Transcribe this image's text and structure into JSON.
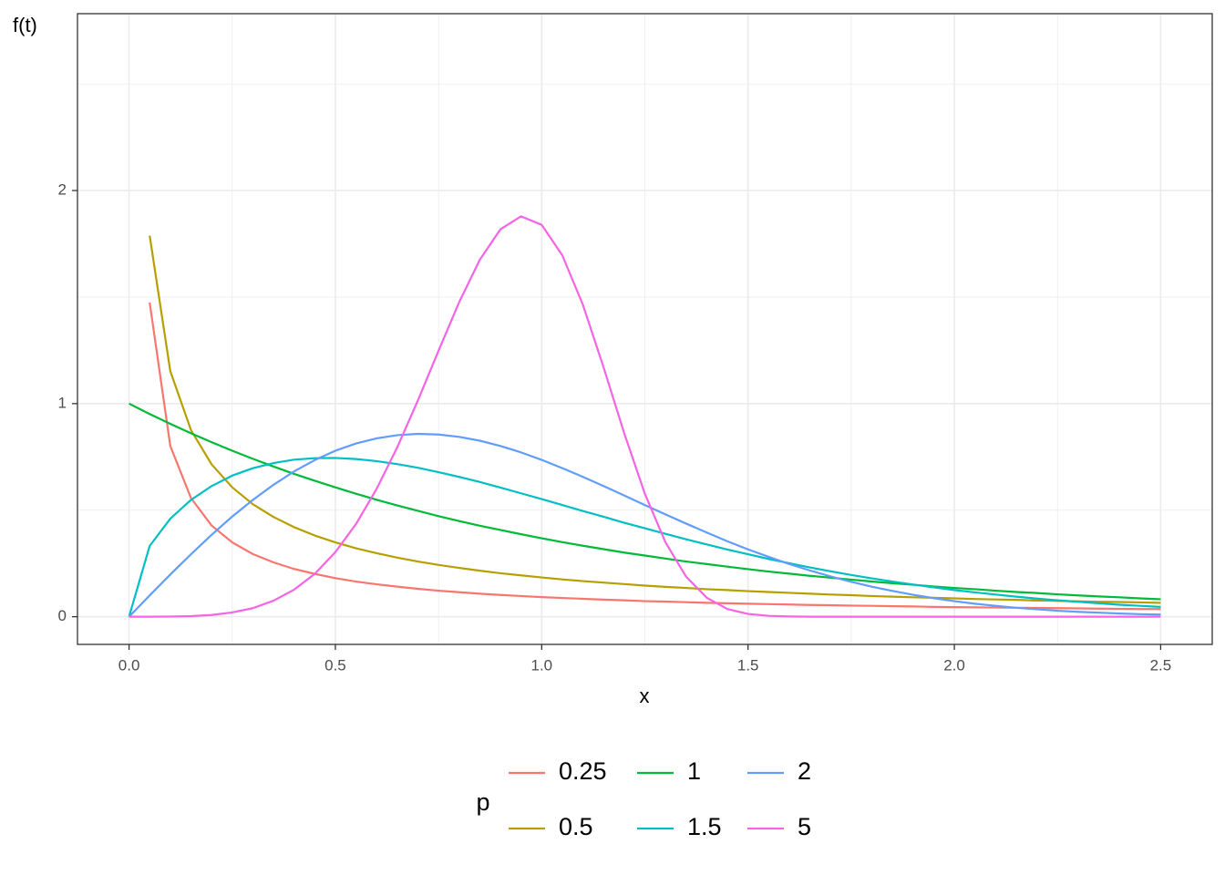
{
  "chart_data": {
    "type": "line",
    "x_label": "x",
    "y_label": "f(t)",
    "legend_title": "p",
    "x": [
      0,
      0.05,
      0.1,
      0.15,
      0.2,
      0.25,
      0.3,
      0.35,
      0.4,
      0.45,
      0.5,
      0.55,
      0.6,
      0.65,
      0.7,
      0.75,
      0.8,
      0.85,
      0.9,
      0.95,
      1,
      1.05,
      1.1,
      1.15,
      1.2,
      1.25,
      1.3,
      1.35,
      1.4,
      1.45,
      1.5,
      1.55,
      1.6,
      1.65,
      1.7,
      1.75,
      1.8,
      1.85,
      1.9,
      1.95,
      2,
      2.05,
      2.1,
      2.15,
      2.2,
      2.25,
      2.3,
      2.35,
      2.4,
      2.45,
      2.5
    ],
    "series": [
      {
        "name": "0.25",
        "color": "#F8766D",
        "values": [
          null,
          1.474,
          0.801,
          0.557,
          0.428,
          0.349,
          0.294,
          0.255,
          0.224,
          0.201,
          0.181,
          0.165,
          0.152,
          0.141,
          0.131,
          0.122,
          0.115,
          0.108,
          0.102,
          0.097,
          0.092,
          0.088,
          0.084,
          0.08,
          0.077,
          0.073,
          0.071,
          0.068,
          0.065,
          0.063,
          0.061,
          0.059,
          0.057,
          0.055,
          0.054,
          0.052,
          0.051,
          0.049,
          0.048,
          0.046,
          0.045,
          0.044,
          0.043,
          0.042,
          0.041,
          0.04,
          0.039,
          0.038,
          0.037,
          0.036,
          0.036
        ]
      },
      {
        "name": "0.5",
        "color": "#B79F00",
        "values": [
          null,
          1.788,
          1.152,
          0.876,
          0.715,
          0.607,
          0.528,
          0.468,
          0.42,
          0.381,
          0.349,
          0.321,
          0.298,
          0.277,
          0.259,
          0.243,
          0.229,
          0.216,
          0.204,
          0.194,
          0.184,
          0.175,
          0.167,
          0.16,
          0.153,
          0.146,
          0.14,
          0.135,
          0.129,
          0.125,
          0.12,
          0.116,
          0.112,
          0.108,
          0.104,
          0.101,
          0.097,
          0.094,
          0.091,
          0.089,
          0.086,
          0.083,
          0.081,
          0.079,
          0.076,
          0.074,
          0.072,
          0.07,
          0.069,
          0.067,
          0.065
        ]
      },
      {
        "name": "1",
        "color": "#00BA38",
        "values": [
          1,
          0.951,
          0.905,
          0.861,
          0.819,
          0.779,
          0.741,
          0.705,
          0.67,
          0.638,
          0.607,
          0.577,
          0.549,
          0.522,
          0.497,
          0.472,
          0.449,
          0.427,
          0.407,
          0.387,
          0.368,
          0.35,
          0.333,
          0.317,
          0.301,
          0.287,
          0.273,
          0.259,
          0.247,
          0.235,
          0.223,
          0.212,
          0.202,
          0.192,
          0.183,
          0.174,
          0.165,
          0.157,
          0.15,
          0.142,
          0.135,
          0.129,
          0.122,
          0.116,
          0.111,
          0.105,
          0.1,
          0.095,
          0.091,
          0.086,
          0.082
        ]
      },
      {
        "name": "1.5",
        "color": "#00BFC4",
        "values": [
          0,
          0.332,
          0.46,
          0.548,
          0.613,
          0.662,
          0.697,
          0.721,
          0.737,
          0.744,
          0.745,
          0.74,
          0.73,
          0.716,
          0.699,
          0.678,
          0.656,
          0.632,
          0.606,
          0.579,
          0.552,
          0.524,
          0.496,
          0.469,
          0.441,
          0.415,
          0.389,
          0.363,
          0.339,
          0.315,
          0.293,
          0.271,
          0.251,
          0.231,
          0.213,
          0.196,
          0.18,
          0.165,
          0.151,
          0.138,
          0.125,
          0.114,
          0.104,
          0.094,
          0.085,
          0.077,
          0.07,
          0.063,
          0.056,
          0.051,
          0.046
        ]
      },
      {
        "name": "2",
        "color": "#619CFF",
        "values": [
          0,
          0.1,
          0.198,
          0.293,
          0.384,
          0.47,
          0.548,
          0.619,
          0.682,
          0.735,
          0.779,
          0.813,
          0.837,
          0.852,
          0.858,
          0.855,
          0.844,
          0.826,
          0.801,
          0.771,
          0.736,
          0.697,
          0.656,
          0.613,
          0.569,
          0.524,
          0.48,
          0.437,
          0.395,
          0.354,
          0.316,
          0.281,
          0.247,
          0.217,
          0.189,
          0.164,
          0.141,
          0.121,
          0.103,
          0.087,
          0.073,
          0.061,
          0.051,
          0.042,
          0.035,
          0.028,
          0.023,
          0.019,
          0.015,
          0.012,
          0.01
        ]
      },
      {
        "name": "5",
        "color": "#F564E3",
        "values": [
          0,
          0,
          0.0005,
          0.0025,
          0.008,
          0.02,
          0.04,
          0.075,
          0.127,
          0.201,
          0.303,
          0.435,
          0.6,
          0.795,
          1.015,
          1.248,
          1.476,
          1.675,
          1.818,
          1.879,
          1.839,
          1.696,
          1.463,
          1.17,
          0.861,
          0.577,
          0.349,
          0.188,
          0.089,
          0.036,
          0.013,
          0.004,
          0.001,
          0,
          0,
          0,
          0,
          0,
          0,
          0,
          0,
          0,
          0,
          0,
          0,
          0,
          0,
          0,
          0,
          0,
          0
        ]
      }
    ],
    "xlim": [
      -0.125,
      2.625
    ],
    "ylim": [
      -0.13,
      2.83
    ],
    "xticks": [
      {
        "value": 0,
        "label": "0.0"
      },
      0.5,
      {
        "value": 1,
        "label": "1.0"
      },
      1.5,
      {
        "value": 2,
        "label": "2.0"
      },
      2.5
    ],
    "yticks": [
      0,
      1,
      2
    ],
    "grid": true,
    "legend_position": "bottom"
  }
}
